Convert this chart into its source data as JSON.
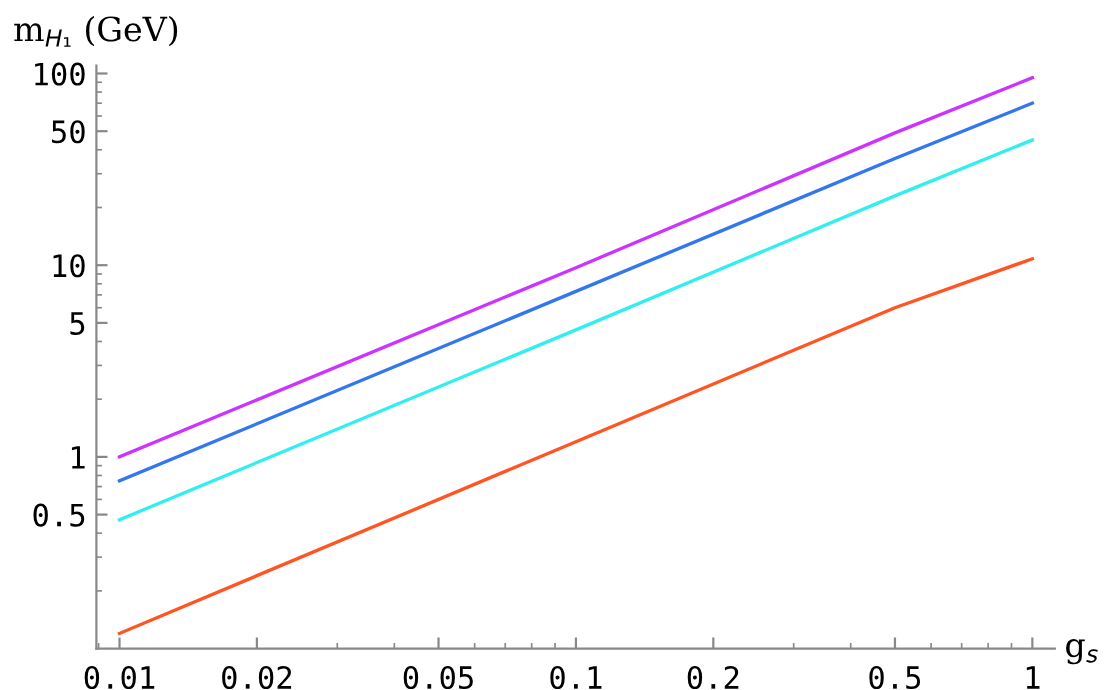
{
  "chart_data": {
    "type": "line",
    "xlabel": "g$_{s}$",
    "ylabel": "m$_{H₁}$ (GeV)",
    "log": "xy",
    "grid": false,
    "legend": false,
    "marker": "none",
    "line_style": "solid",
    "xlim": [
      0.0089,
      1.12
    ],
    "ylim": [
      0.1,
      110
    ],
    "xticks": [
      0.01,
      0.02,
      0.05,
      0.1,
      0.2,
      0.5,
      1
    ],
    "yticks": [
      0.5,
      1,
      5,
      10,
      50,
      100
    ],
    "x": [
      0.01,
      0.1,
      0.5,
      1
    ],
    "series": [
      {
        "color": "#cc33ff",
        "values": [
          1.0,
          9.7,
          49,
          95
        ]
      },
      {
        "color": "#3377ee",
        "values": [
          0.75,
          7.3,
          36,
          70
        ]
      },
      {
        "color": "#33eeee",
        "values": [
          0.47,
          4.6,
          23,
          45
        ]
      },
      {
        "color": "#ff5522",
        "values": [
          0.12,
          1.2,
          6.0,
          10.8
        ]
      }
    ]
  }
}
